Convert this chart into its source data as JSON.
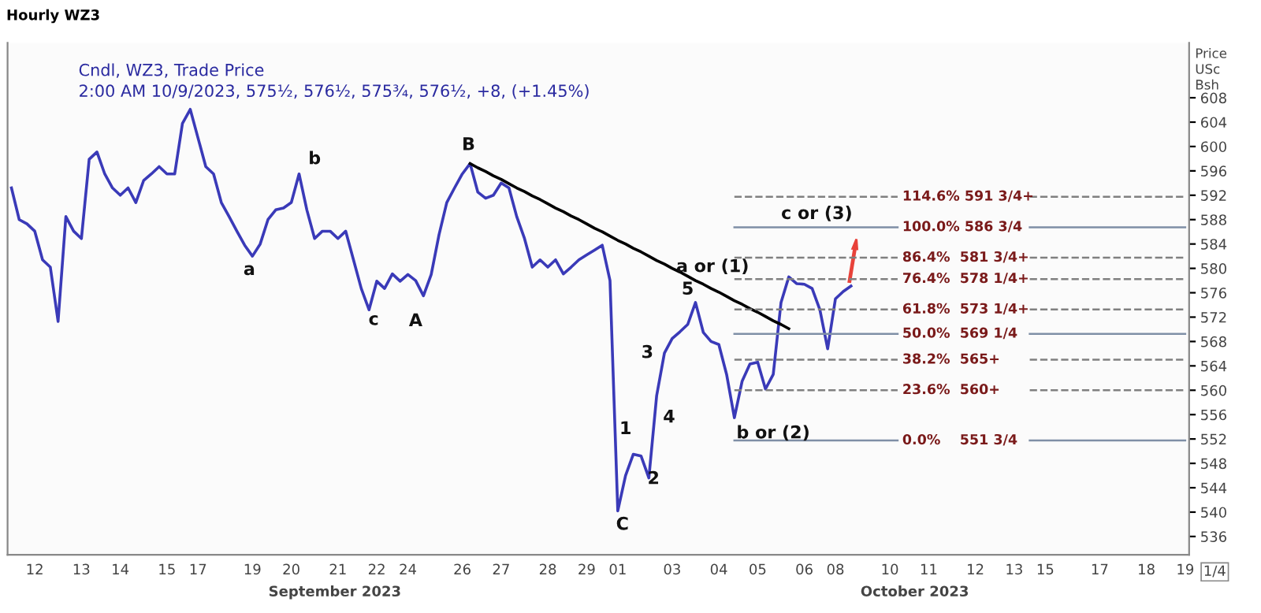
{
  "chart_data": {
    "type": "line",
    "title": "Hourly WZ3",
    "subtitle": "Cndl, WZ3, Trade Price\n2:00 AM 10/9/2023, 575½, 576½, 575¾, 576½, +8, (+1.45%)",
    "ylabel": "Price\nUSc\nBsh",
    "categories": [
      null,
      null,
      null,
      "12",
      null,
      null,
      null,
      null,
      null,
      "13",
      null,
      null,
      null,
      null,
      "14",
      null,
      null,
      null,
      null,
      null,
      "15",
      null,
      null,
      null,
      "17",
      null,
      null,
      null,
      null,
      null,
      null,
      "19",
      null,
      null,
      null,
      null,
      "20",
      null,
      null,
      null,
      null,
      null,
      "21",
      null,
      null,
      null,
      null,
      "22",
      null,
      null,
      null,
      "24",
      null,
      null,
      null,
      null,
      null,
      null,
      "26",
      null,
      null,
      null,
      null,
      "27",
      null,
      null,
      null,
      null,
      null,
      "28",
      null,
      null,
      null,
      null,
      "29",
      null,
      null,
      null,
      "01",
      null,
      null,
      null,
      null,
      null,
      null,
      "03",
      null,
      null,
      null,
      null,
      null,
      "04",
      null,
      null,
      null,
      null,
      "05",
      null,
      null,
      null,
      null,
      null,
      "06",
      null,
      null,
      null,
      "08",
      null,
      null,
      null,
      null,
      null,
      null,
      "10",
      null,
      null,
      null,
      null,
      "11",
      null,
      null,
      null,
      null,
      null,
      "12",
      null,
      null,
      null,
      null,
      "13",
      null,
      null,
      null,
      "15",
      null,
      null,
      null,
      null,
      null,
      null,
      "17",
      null,
      null,
      null,
      null,
      null,
      "18",
      null,
      null,
      null,
      null,
      "19"
    ],
    "series": [
      {
        "color": "#3a3ab8",
        "line_style": "solid",
        "values": [
          593.2,
          588.0,
          587.3,
          586.1,
          581.4,
          580.2,
          571.3,
          588.5,
          586.1,
          584.9,
          597.9,
          599.1,
          595.5,
          593.2,
          592.0,
          593.2,
          590.8,
          594.4,
          595.5,
          596.7,
          595.5,
          595.5,
          603.8,
          606.1,
          601.4,
          596.7,
          595.5,
          590.8,
          588.5,
          586.1,
          583.8,
          582.0,
          584.0,
          588.0,
          589.6,
          589.9,
          590.8,
          595.5,
          589.6,
          584.9,
          586.1,
          586.1,
          584.9,
          586.1,
          581.4,
          576.7,
          573.2,
          577.9,
          576.7,
          579.1,
          577.9,
          579.0,
          578.0,
          575.5,
          579.0,
          585.5,
          590.8,
          593.2,
          595.5,
          597.2,
          592.5,
          591.5,
          592.0,
          594.0,
          593.2,
          588.5,
          584.9,
          580.2,
          581.4,
          580.2,
          581.4,
          579.1,
          580.2,
          581.4,
          582.2,
          583.0,
          583.8,
          578.0,
          540.2,
          546.0,
          549.5,
          549.2,
          545.6,
          559.1,
          566.1,
          568.5,
          569.6,
          570.8,
          574.4,
          569.5,
          568.0,
          567.5,
          562.6,
          555.5,
          561.5,
          564.3,
          564.6,
          560.2,
          562.6,
          574.4,
          578.6,
          577.5,
          577.4,
          576.7,
          573.2,
          566.8,
          575.0,
          576.2,
          577.1,
          null,
          null,
          null,
          null,
          null,
          null,
          null,
          null,
          null,
          null,
          null,
          null,
          null,
          null,
          null,
          null,
          null,
          null,
          null,
          null,
          null,
          null,
          null,
          null,
          null,
          null,
          null,
          null,
          null,
          null,
          null,
          null,
          null,
          null,
          null,
          null,
          null,
          null,
          null,
          null,
          null,
          null,
          null
        ]
      },
      {
        "color": "#000000",
        "line_style": "solid",
        "values": [
          null,
          null,
          null,
          null,
          null,
          null,
          null,
          null,
          null,
          null,
          null,
          null,
          null,
          null,
          null,
          null,
          null,
          null,
          null,
          null,
          null,
          null,
          null,
          null,
          null,
          null,
          null,
          null,
          null,
          null,
          null,
          null,
          null,
          null,
          null,
          null,
          null,
          null,
          null,
          null,
          null,
          null,
          null,
          null,
          null,
          null,
          null,
          null,
          null,
          null,
          null,
          null,
          null,
          null,
          null,
          null,
          null,
          null,
          null,
          597.2,
          596.5,
          595.9,
          595.2,
          594.6,
          593.9,
          593.2,
          592.6,
          591.9,
          591.3,
          590.6,
          589.9,
          589.3,
          588.6,
          588.0,
          587.3,
          586.6,
          586.0,
          585.3,
          584.6,
          584.0,
          583.3,
          582.7,
          582.0,
          581.3,
          580.7,
          580.0,
          579.4,
          578.7,
          578.0,
          577.4,
          576.7,
          576.1,
          575.4,
          574.7,
          574.1,
          573.4,
          572.8,
          572.1,
          571.4,
          570.8,
          570.1,
          null,
          null,
          null,
          null,
          null,
          null,
          null,
          null,
          null,
          null,
          null,
          null,
          null,
          null,
          null,
          null,
          null,
          null,
          null,
          null,
          null,
          null,
          null,
          null,
          null,
          null,
          null,
          null,
          null,
          null,
          null,
          null,
          null,
          null,
          null,
          null,
          null,
          null,
          null,
          null,
          null,
          null,
          null,
          null,
          null,
          null,
          null,
          null,
          null,
          null,
          null
        ]
      },
      {
        "color": "#808080",
        "line_style": "dashed",
        "values": [
          null,
          null,
          null,
          null,
          null,
          null,
          null,
          null,
          null,
          null,
          null,
          null,
          null,
          null,
          null,
          null,
          null,
          null,
          null,
          null,
          null,
          null,
          null,
          null,
          null,
          null,
          null,
          null,
          null,
          null,
          null,
          null,
          null,
          null,
          null,
          null,
          null,
          null,
          null,
          null,
          null,
          null,
          null,
          null,
          null,
          null,
          null,
          null,
          null,
          null,
          null,
          null,
          null,
          null,
          null,
          null,
          null,
          null,
          null,
          null,
          null,
          null,
          null,
          null,
          null,
          null,
          null,
          null,
          null,
          null,
          null,
          null,
          null,
          null,
          null,
          null,
          null,
          null,
          null,
          null,
          null,
          null,
          null,
          null,
          null,
          null,
          null,
          null,
          null,
          null,
          null,
          null,
          null,
          591.75,
          591.75,
          591.75,
          591.75,
          591.75,
          591.75,
          591.75,
          591.75,
          591.75,
          591.75,
          591.75,
          591.75,
          591.75,
          591.75,
          591.75,
          591.75,
          591.75,
          591.75,
          591.75,
          591.75,
          591.75,
          591.75,
          null,
          null,
          null,
          null,
          null,
          null,
          null,
          null,
          null,
          null,
          null,
          null,
          null,
          null,
          null,
          null,
          591.75,
          591.75,
          591.75,
          591.75,
          591.75,
          591.75,
          591.75,
          591.75,
          591.75,
          591.75,
          591.75,
          591.75,
          591.75,
          591.75,
          591.75,
          591.75,
          591.75,
          591.75,
          591.75,
          591.75,
          591.75
        ]
      },
      {
        "color": "#7f8fa6",
        "line_style": "solid",
        "values": [
          null,
          null,
          null,
          null,
          null,
          null,
          null,
          null,
          null,
          null,
          null,
          null,
          null,
          null,
          null,
          null,
          null,
          null,
          null,
          null,
          null,
          null,
          null,
          null,
          null,
          null,
          null,
          null,
          null,
          null,
          null,
          null,
          null,
          null,
          null,
          null,
          null,
          null,
          null,
          null,
          null,
          null,
          null,
          null,
          null,
          null,
          null,
          null,
          null,
          null,
          null,
          null,
          null,
          null,
          null,
          null,
          null,
          null,
          null,
          null,
          null,
          null,
          null,
          null,
          null,
          null,
          null,
          null,
          null,
          null,
          null,
          null,
          null,
          null,
          null,
          null,
          null,
          null,
          null,
          null,
          null,
          null,
          null,
          null,
          null,
          null,
          null,
          null,
          null,
          null,
          null,
          null,
          null,
          586.75,
          586.75,
          586.75,
          586.75,
          586.75,
          586.75,
          586.75,
          586.75,
          586.75,
          586.75,
          586.75,
          586.75,
          586.75,
          586.75,
          586.75,
          586.75,
          586.75,
          586.75,
          586.75,
          586.75,
          586.75,
          586.75,
          null,
          null,
          null,
          null,
          null,
          null,
          null,
          null,
          null,
          null,
          null,
          null,
          null,
          null,
          null,
          null,
          586.75,
          586.75,
          586.75,
          586.75,
          586.75,
          586.75,
          586.75,
          586.75,
          586.75,
          586.75,
          586.75,
          586.75,
          586.75,
          586.75,
          586.75,
          586.75,
          586.75,
          586.75,
          586.75,
          586.75,
          586.75
        ]
      },
      {
        "color": "#808080",
        "line_style": "dashed",
        "values": [
          null,
          null,
          null,
          null,
          null,
          null,
          null,
          null,
          null,
          null,
          null,
          null,
          null,
          null,
          null,
          null,
          null,
          null,
          null,
          null,
          null,
          null,
          null,
          null,
          null,
          null,
          null,
          null,
          null,
          null,
          null,
          null,
          null,
          null,
          null,
          null,
          null,
          null,
          null,
          null,
          null,
          null,
          null,
          null,
          null,
          null,
          null,
          null,
          null,
          null,
          null,
          null,
          null,
          null,
          null,
          null,
          null,
          null,
          null,
          null,
          null,
          null,
          null,
          null,
          null,
          null,
          null,
          null,
          null,
          null,
          null,
          null,
          null,
          null,
          null,
          null,
          null,
          null,
          null,
          null,
          null,
          null,
          null,
          null,
          null,
          null,
          null,
          null,
          null,
          null,
          null,
          null,
          null,
          581.75,
          581.75,
          581.75,
          581.75,
          581.75,
          581.75,
          581.75,
          581.75,
          581.75,
          581.75,
          581.75,
          581.75,
          581.75,
          581.75,
          581.75,
          581.75,
          581.75,
          581.75,
          581.75,
          581.75,
          581.75,
          581.75,
          null,
          null,
          null,
          null,
          null,
          null,
          null,
          null,
          null,
          null,
          null,
          null,
          null,
          null,
          null,
          null,
          581.75,
          581.75,
          581.75,
          581.75,
          581.75,
          581.75,
          581.75,
          581.75,
          581.75,
          581.75,
          581.75,
          581.75,
          581.75,
          581.75,
          581.75,
          581.75,
          581.75,
          581.75,
          581.75,
          581.75,
          581.75
        ]
      },
      {
        "color": "#808080",
        "line_style": "dashed",
        "values": [
          null,
          null,
          null,
          null,
          null,
          null,
          null,
          null,
          null,
          null,
          null,
          null,
          null,
          null,
          null,
          null,
          null,
          null,
          null,
          null,
          null,
          null,
          null,
          null,
          null,
          null,
          null,
          null,
          null,
          null,
          null,
          null,
          null,
          null,
          null,
          null,
          null,
          null,
          null,
          null,
          null,
          null,
          null,
          null,
          null,
          null,
          null,
          null,
          null,
          null,
          null,
          null,
          null,
          null,
          null,
          null,
          null,
          null,
          null,
          null,
          null,
          null,
          null,
          null,
          null,
          null,
          null,
          null,
          null,
          null,
          null,
          null,
          null,
          null,
          null,
          null,
          null,
          null,
          null,
          null,
          null,
          null,
          null,
          null,
          null,
          null,
          null,
          null,
          null,
          null,
          null,
          null,
          null,
          578.25,
          578.25,
          578.25,
          578.25,
          578.25,
          578.25,
          578.25,
          578.25,
          578.25,
          578.25,
          578.25,
          578.25,
          578.25,
          578.25,
          578.25,
          578.25,
          578.25,
          578.25,
          578.25,
          578.25,
          578.25,
          578.25,
          null,
          null,
          null,
          null,
          null,
          null,
          null,
          null,
          null,
          null,
          null,
          null,
          null,
          null,
          null,
          null,
          578.25,
          578.25,
          578.25,
          578.25,
          578.25,
          578.25,
          578.25,
          578.25,
          578.25,
          578.25,
          578.25,
          578.25,
          578.25,
          578.25,
          578.25,
          578.25,
          578.25,
          578.25,
          578.25,
          578.25,
          578.25
        ]
      },
      {
        "color": "#808080",
        "line_style": "dashed",
        "values": [
          null,
          null,
          null,
          null,
          null,
          null,
          null,
          null,
          null,
          null,
          null,
          null,
          null,
          null,
          null,
          null,
          null,
          null,
          null,
          null,
          null,
          null,
          null,
          null,
          null,
          null,
          null,
          null,
          null,
          null,
          null,
          null,
          null,
          null,
          null,
          null,
          null,
          null,
          null,
          null,
          null,
          null,
          null,
          null,
          null,
          null,
          null,
          null,
          null,
          null,
          null,
          null,
          null,
          null,
          null,
          null,
          null,
          null,
          null,
          null,
          null,
          null,
          null,
          null,
          null,
          null,
          null,
          null,
          null,
          null,
          null,
          null,
          null,
          null,
          null,
          null,
          null,
          null,
          null,
          null,
          null,
          null,
          null,
          null,
          null,
          null,
          null,
          null,
          null,
          null,
          null,
          null,
          null,
          573.25,
          573.25,
          573.25,
          573.25,
          573.25,
          573.25,
          573.25,
          573.25,
          573.25,
          573.25,
          573.25,
          573.25,
          573.25,
          573.25,
          573.25,
          573.25,
          573.25,
          573.25,
          573.25,
          573.25,
          573.25,
          573.25,
          null,
          null,
          null,
          null,
          null,
          null,
          null,
          null,
          null,
          null,
          null,
          null,
          null,
          null,
          null,
          null,
          573.25,
          573.25,
          573.25,
          573.25,
          573.25,
          573.25,
          573.25,
          573.25,
          573.25,
          573.25,
          573.25,
          573.25,
          573.25,
          573.25,
          573.25,
          573.25,
          573.25,
          573.25,
          573.25,
          573.25,
          573.25
        ]
      },
      {
        "color": "#7f8fa6",
        "line_style": "solid",
        "values": [
          null,
          null,
          null,
          null,
          null,
          null,
          null,
          null,
          null,
          null,
          null,
          null,
          null,
          null,
          null,
          null,
          null,
          null,
          null,
          null,
          null,
          null,
          null,
          null,
          null,
          null,
          null,
          null,
          null,
          null,
          null,
          null,
          null,
          null,
          null,
          null,
          null,
          null,
          null,
          null,
          null,
          null,
          null,
          null,
          null,
          null,
          null,
          null,
          null,
          null,
          null,
          null,
          null,
          null,
          null,
          null,
          null,
          null,
          null,
          null,
          null,
          null,
          null,
          null,
          null,
          null,
          null,
          null,
          null,
          null,
          null,
          null,
          null,
          null,
          null,
          null,
          null,
          null,
          null,
          null,
          null,
          null,
          null,
          null,
          null,
          null,
          null,
          null,
          null,
          null,
          null,
          null,
          null,
          569.25,
          569.25,
          569.25,
          569.25,
          569.25,
          569.25,
          569.25,
          569.25,
          569.25,
          569.25,
          569.25,
          569.25,
          569.25,
          569.25,
          569.25,
          569.25,
          569.25,
          569.25,
          569.25,
          569.25,
          569.25,
          569.25,
          null,
          null,
          null,
          null,
          null,
          null,
          null,
          null,
          null,
          null,
          null,
          null,
          null,
          null,
          null,
          null,
          569.25,
          569.25,
          569.25,
          569.25,
          569.25,
          569.25,
          569.25,
          569.25,
          569.25,
          569.25,
          569.25,
          569.25,
          569.25,
          569.25,
          569.25,
          569.25,
          569.25,
          569.25,
          569.25,
          569.25,
          569.25
        ]
      },
      {
        "color": "#808080",
        "line_style": "dashed",
        "values": [
          null,
          null,
          null,
          null,
          null,
          null,
          null,
          null,
          null,
          null,
          null,
          null,
          null,
          null,
          null,
          null,
          null,
          null,
          null,
          null,
          null,
          null,
          null,
          null,
          null,
          null,
          null,
          null,
          null,
          null,
          null,
          null,
          null,
          null,
          null,
          null,
          null,
          null,
          null,
          null,
          null,
          null,
          null,
          null,
          null,
          null,
          null,
          null,
          null,
          null,
          null,
          null,
          null,
          null,
          null,
          null,
          null,
          null,
          null,
          null,
          null,
          null,
          null,
          null,
          null,
          null,
          null,
          null,
          null,
          null,
          null,
          null,
          null,
          null,
          null,
          null,
          null,
          null,
          null,
          null,
          null,
          null,
          null,
          null,
          null,
          null,
          null,
          null,
          null,
          null,
          null,
          null,
          null,
          565,
          565,
          565,
          565,
          565,
          565,
          565,
          565,
          565,
          565,
          565,
          565,
          565,
          565,
          565,
          565,
          565,
          565,
          565,
          565,
          565,
          565,
          null,
          null,
          null,
          null,
          null,
          null,
          null,
          null,
          null,
          null,
          null,
          null,
          null,
          null,
          null,
          null,
          565,
          565,
          565,
          565,
          565,
          565,
          565,
          565,
          565,
          565,
          565,
          565,
          565,
          565,
          565,
          565,
          565,
          565,
          565,
          565,
          565
        ]
      },
      {
        "color": "#808080",
        "line_style": "dashed",
        "values": [
          null,
          null,
          null,
          null,
          null,
          null,
          null,
          null,
          null,
          null,
          null,
          null,
          null,
          null,
          null,
          null,
          null,
          null,
          null,
          null,
          null,
          null,
          null,
          null,
          null,
          null,
          null,
          null,
          null,
          null,
          null,
          null,
          null,
          null,
          null,
          null,
          null,
          null,
          null,
          null,
          null,
          null,
          null,
          null,
          null,
          null,
          null,
          null,
          null,
          null,
          null,
          null,
          null,
          null,
          null,
          null,
          null,
          null,
          null,
          null,
          null,
          null,
          null,
          null,
          null,
          null,
          null,
          null,
          null,
          null,
          null,
          null,
          null,
          null,
          null,
          null,
          null,
          null,
          null,
          null,
          null,
          null,
          null,
          null,
          null,
          null,
          null,
          null,
          null,
          null,
          null,
          null,
          null,
          560,
          560,
          560,
          560,
          560,
          560,
          560,
          560,
          560,
          560,
          560,
          560,
          560,
          560,
          560,
          560,
          560,
          560,
          560,
          560,
          560,
          560,
          null,
          null,
          null,
          null,
          null,
          null,
          null,
          null,
          null,
          null,
          null,
          null,
          null,
          null,
          null,
          null,
          560,
          560,
          560,
          560,
          560,
          560,
          560,
          560,
          560,
          560,
          560,
          560,
          560,
          560,
          560,
          560,
          560,
          560,
          560,
          560,
          560
        ]
      },
      {
        "color": "#7f8fa6",
        "line_style": "solid",
        "values": [
          null,
          null,
          null,
          null,
          null,
          null,
          null,
          null,
          null,
          null,
          null,
          null,
          null,
          null,
          null,
          null,
          null,
          null,
          null,
          null,
          null,
          null,
          null,
          null,
          null,
          null,
          null,
          null,
          null,
          null,
          null,
          null,
          null,
          null,
          null,
          null,
          null,
          null,
          null,
          null,
          null,
          null,
          null,
          null,
          null,
          null,
          null,
          null,
          null,
          null,
          null,
          null,
          null,
          null,
          null,
          null,
          null,
          null,
          null,
          null,
          null,
          null,
          null,
          null,
          null,
          null,
          null,
          null,
          null,
          null,
          null,
          null,
          null,
          null,
          null,
          null,
          null,
          null,
          null,
          null,
          null,
          null,
          null,
          null,
          null,
          null,
          null,
          null,
          null,
          null,
          null,
          null,
          null,
          551.75,
          551.75,
          551.75,
          551.75,
          551.75,
          551.75,
          551.75,
          551.75,
          551.75,
          551.75,
          551.75,
          551.75,
          551.75,
          551.75,
          551.75,
          551.75,
          551.75,
          551.75,
          551.75,
          551.75,
          551.75,
          551.75,
          null,
          null,
          null,
          null,
          null,
          null,
          null,
          null,
          null,
          null,
          null,
          null,
          null,
          null,
          null,
          null,
          551.75,
          551.75,
          551.75,
          551.75,
          551.75,
          551.75,
          551.75,
          551.75,
          551.75,
          551.75,
          551.75,
          551.75,
          551.75,
          551.75,
          551.75,
          551.75,
          551.75,
          551.75,
          551.75,
          551.75,
          551.75
        ]
      }
    ],
    "ylim": [
      533,
      617
    ],
    "yticks": [
      536,
      540,
      544,
      548,
      552,
      556,
      560,
      564,
      568,
      572,
      576,
      580,
      584,
      588,
      592,
      596,
      600,
      604,
      608
    ],
    "grid": false,
    "legend": false,
    "annotations": [
      "114.6% 591 3/4+",
      "100.0% 586 3/4",
      "86.4%  581 3/4+",
      "76.4%  578 1/4+",
      "61.8%  573 1/4+",
      "50.0%  569 1/4",
      "38.2%  565+",
      "23.6%  560+",
      "0.0%    551 3/4",
      "a",
      "b",
      "c",
      "A",
      "B",
      "C",
      "1",
      "2",
      "3",
      "4",
      "5",
      "a or (1)",
      "b or (2)",
      "c or (3)",
      "September 2023",
      "October 2023",
      "1/4"
    ]
  }
}
